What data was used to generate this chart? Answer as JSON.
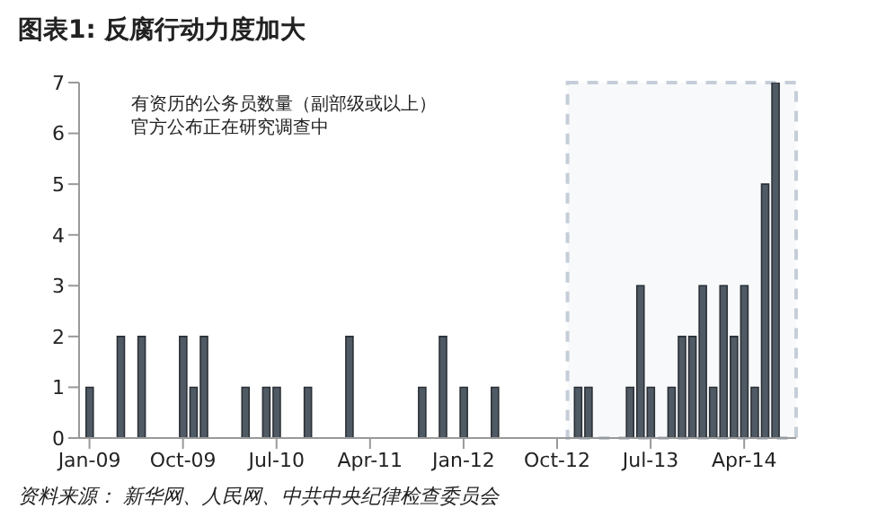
{
  "chart_data": {
    "type": "bar",
    "title": "图表1: 反腐行动力度加大",
    "annotations": [
      "有资历的公务员数量（副部级或以上）",
      "官方公布正在研究调查中",
      "资料来源： 新华网、人民网、中共中央纪律检查委员会"
    ],
    "x": [
      "2009-01",
      "2009-04",
      "2009-06",
      "2009-10",
      "2009-11",
      "2009-12",
      "2010-04",
      "2010-06",
      "2010-07",
      "2010-10",
      "2011-02",
      "2011-09",
      "2011-11",
      "2012-01",
      "2012-04",
      "2012-12",
      "2013-01",
      "2013-05",
      "2013-06",
      "2013-07",
      "2013-09",
      "2013-10",
      "2013-11",
      "2013-12",
      "2014-01",
      "2014-02",
      "2014-03",
      "2014-04",
      "2014-05",
      "2014-06",
      "2014-07"
    ],
    "series": [
      {
        "color": "#4f5a65",
        "values": [
          1,
          2,
          2,
          2,
          1,
          2,
          1,
          1,
          1,
          1,
          2,
          1,
          2,
          1,
          1,
          1,
          1,
          1,
          3,
          1,
          1,
          2,
          2,
          3,
          1,
          3,
          2,
          3,
          1,
          5,
          7
        ]
      }
    ],
    "xlim": [
      "2008-12",
      "2014-09"
    ],
    "xticks": [
      {
        "value": "2009-01",
        "label": "Jan-09"
      },
      {
        "value": "2009-10",
        "label": "Oct-09"
      },
      {
        "value": "2010-07",
        "label": "Jul-10"
      },
      {
        "value": "2011-04",
        "label": "Apr-11"
      },
      {
        "value": "2012-01",
        "label": "Jan-12"
      },
      {
        "value": "2012-10",
        "label": "Oct-12"
      },
      {
        "value": "2013-07",
        "label": "Jul-13"
      },
      {
        "value": "2014-04",
        "label": "Apr-14"
      }
    ],
    "ylim": [
      0,
      7
    ],
    "yticks": [
      0,
      1,
      2,
      3,
      4,
      5,
      6,
      7
    ],
    "bands": [
      {
        "axis": "x",
        "from": "2012-11",
        "to": "2014-09",
        "color": "#c5ced8"
      }
    ],
    "grid": false,
    "legend": false
  }
}
